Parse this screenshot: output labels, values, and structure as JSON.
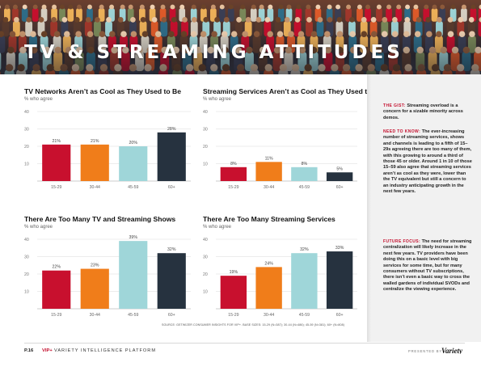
{
  "banner": {
    "title": "TV & STREAMING ATTITUDES"
  },
  "colors": {
    "age_15_29": "#c8102e",
    "age_30_44": "#f07d1a",
    "age_45_59": "#9fd6d9",
    "age_60_plus": "#26323f",
    "accent": "#c4102e"
  },
  "chart_data": [
    {
      "type": "bar",
      "title": "TV Networks Aren’t as Cool as They Used to Be",
      "subtitle": "% who agree",
      "categories": [
        "15-29",
        "30-44",
        "45-59",
        "60+"
      ],
      "values": [
        21,
        21,
        20,
        28
      ],
      "data_labels": [
        "21%",
        "21%",
        "20%",
        "28%"
      ],
      "yticks": [
        10,
        20,
        30,
        40
      ],
      "ylim": [
        0,
        40
      ],
      "grid": true,
      "legend": "none"
    },
    {
      "type": "bar",
      "title": "Streaming Services Aren’t as Cool as They Used to Be",
      "subtitle": "% who agree",
      "categories": [
        "15-29",
        "30-44",
        "45-59",
        "60+"
      ],
      "values": [
        8,
        11,
        8,
        5
      ],
      "data_labels": [
        "8%",
        "11%",
        "8%",
        "5%"
      ],
      "yticks": [
        10,
        20,
        30,
        40
      ],
      "ylim": [
        0,
        40
      ],
      "grid": true,
      "legend": "none"
    },
    {
      "type": "bar",
      "title": "There Are Too Many TV and Streaming Shows",
      "subtitle": "% who agree",
      "categories": [
        "15-29",
        "30-44",
        "45-59",
        "60+"
      ],
      "values": [
        22,
        23,
        39,
        32
      ],
      "data_labels": [
        "22%",
        "23%",
        "39%",
        "32%"
      ],
      "yticks": [
        10,
        20,
        30,
        40
      ],
      "ylim": [
        0,
        40
      ],
      "grid": true,
      "legend": "none"
    },
    {
      "type": "bar",
      "title": "There Are Too Many Streaming Services",
      "subtitle": "% who agree",
      "categories": [
        "15-29",
        "30-44",
        "45-59",
        "60+"
      ],
      "values": [
        19,
        24,
        32,
        33
      ],
      "data_labels": [
        "19%",
        "24%",
        "32%",
        "33%"
      ],
      "yticks": [
        10,
        20,
        30,
        40
      ],
      "ylim": [
        0,
        40
      ],
      "grid": true,
      "legend": "none"
    }
  ],
  "sidebar": {
    "gist_label": "THE GIST:",
    "gist_text": "Streaming overload is a concern for a sizable minority across demos.",
    "need_label": "NEED TO KNOW:",
    "need_text": "The ever-increasing number of streaming services, shows and channels is leading to a fifth of 15–29s agreeing there are too many of them, with this growing to around a third of those 45 or older. Around 1 in 10 of those 15–59 also agree that streaming services aren’t as cool as they were, lower than the TV equivalent but still a concern to an industry anticipating growth in the next few years.",
    "future_label": "FUTURE FOCUS:",
    "future_text": "The need for streaming centralization will likely increase in the next few years. TV providers have been doing this on a basic level with big services for some time, but for many consumers without TV subscriptions, there isn’t even a basic way to cross the walled gardens of individual SVODs and centralize the viewing experience."
  },
  "source": "SOURCE: GETWIZER CONSUMER INSIGHTS FOR VIP+. BASE SIZES: 15-29 (N=387); 30-44 (N=486); 45-59 (N=381); 60+ (N=808)",
  "footer": {
    "page": "P.16",
    "vip": "VIP+",
    "platform": "VARIETY INTELLIGENCE PLATFORM",
    "presented": "PRESENTED BY",
    "logo_text": "Variety"
  }
}
